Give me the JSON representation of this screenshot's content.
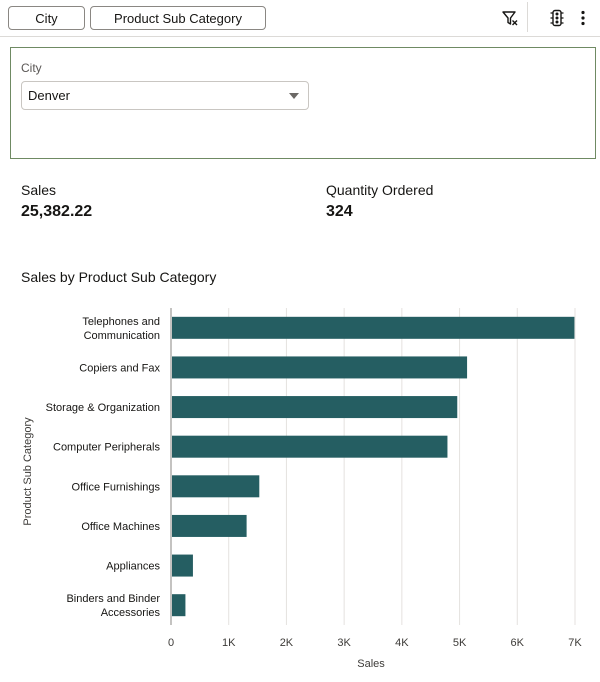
{
  "toolbar": {
    "chips": [
      "City",
      "Product Sub Category"
    ],
    "icons": [
      "filter-clear-icon",
      "traffic-light-icon",
      "more-vertical-icon"
    ]
  },
  "filter": {
    "label": "City",
    "selected": "Denver"
  },
  "metrics": [
    {
      "label": "Sales",
      "value": "25,382.22"
    },
    {
      "label": "Quantity Ordered",
      "value": "324"
    }
  ],
  "chart_title": "Sales by Product Sub Category",
  "chart_data": {
    "type": "bar",
    "orientation": "horizontal",
    "title": "Sales by Product Sub Category",
    "xlabel": "Sales",
    "ylabel": "Product Sub Category",
    "xlim": [
      0,
      7000
    ],
    "xticks": [
      0,
      1000,
      2000,
      3000,
      4000,
      5000,
      6000,
      7000
    ],
    "xtick_labels": [
      "0",
      "1K",
      "2K",
      "3K",
      "4K",
      "5K",
      "6K",
      "7K"
    ],
    "grid": true,
    "categories": [
      [
        "Telephones and",
        "Communication"
      ],
      [
        "Copiers and Fax"
      ],
      [
        "Storage & Organization"
      ],
      [
        "Computer Peripherals"
      ],
      [
        "Office Furnishings"
      ],
      [
        "Office Machines"
      ],
      [
        "Appliances"
      ],
      [
        "Binders and Binder",
        "Accessories"
      ]
    ],
    "values": [
      6990,
      5130,
      4960,
      4790,
      1530,
      1310,
      380,
      250
    ],
    "bar_color": "#255e62"
  }
}
